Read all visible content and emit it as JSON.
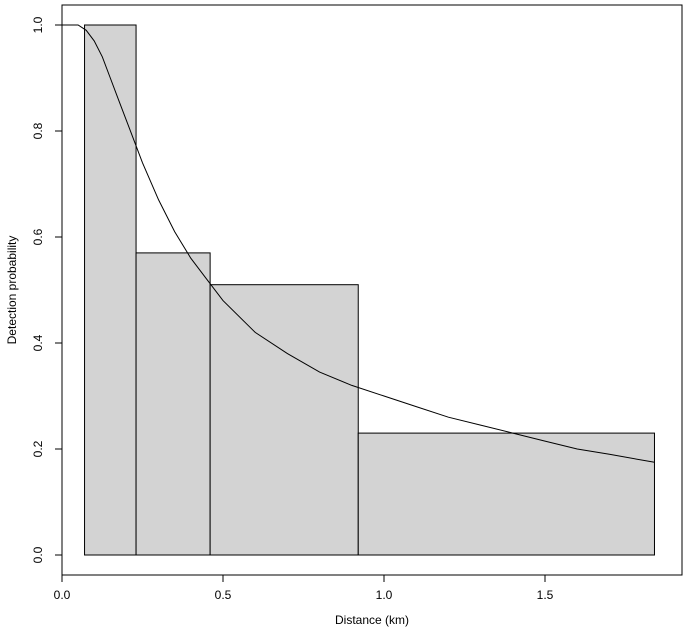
{
  "chart_data": {
    "type": "bar",
    "xlabel": "Distance (km)",
    "ylabel": "Detection probability",
    "xlim": [
      0,
      1.85
    ],
    "ylim": [
      0,
      1.0
    ],
    "x_ticks": [
      {
        "value": 0.0,
        "label": "0.0"
      },
      {
        "value": 0.5,
        "label": "0.5"
      },
      {
        "value": 1.0,
        "label": "1.0"
      },
      {
        "value": 1.5,
        "label": "1.5"
      }
    ],
    "y_ticks": [
      {
        "value": 0.0,
        "label": "0.0"
      },
      {
        "value": 0.2,
        "label": "0.2"
      },
      {
        "value": 0.4,
        "label": "0.4"
      },
      {
        "value": 0.6,
        "label": "0.6"
      },
      {
        "value": 0.8,
        "label": "0.8"
      },
      {
        "value": 1.0,
        "label": "1.0"
      }
    ],
    "bins": [
      {
        "x0": 0.07,
        "x1": 0.23,
        "value": 1.0
      },
      {
        "x0": 0.23,
        "x1": 0.46,
        "value": 0.57
      },
      {
        "x0": 0.46,
        "x1": 0.92,
        "value": 0.51
      },
      {
        "x0": 0.92,
        "x1": 1.84,
        "value": 0.23
      }
    ],
    "fitted_curve": {
      "type": "line",
      "x": [
        0.0,
        0.05,
        0.075,
        0.1,
        0.125,
        0.15,
        0.175,
        0.2,
        0.25,
        0.3,
        0.35,
        0.4,
        0.45,
        0.5,
        0.6,
        0.7,
        0.8,
        0.9,
        1.0,
        1.1,
        1.2,
        1.3,
        1.4,
        1.5,
        1.6,
        1.7,
        1.84
      ],
      "y": [
        1.0,
        1.0,
        0.99,
        0.97,
        0.94,
        0.9,
        0.86,
        0.82,
        0.74,
        0.67,
        0.61,
        0.56,
        0.52,
        0.48,
        0.42,
        0.38,
        0.345,
        0.32,
        0.3,
        0.28,
        0.26,
        0.245,
        0.23,
        0.215,
        0.2,
        0.19,
        0.175
      ]
    },
    "colors": {
      "bar_fill": "#d3d3d3",
      "stroke": "#000000"
    },
    "grid": false,
    "legend": "none"
  }
}
